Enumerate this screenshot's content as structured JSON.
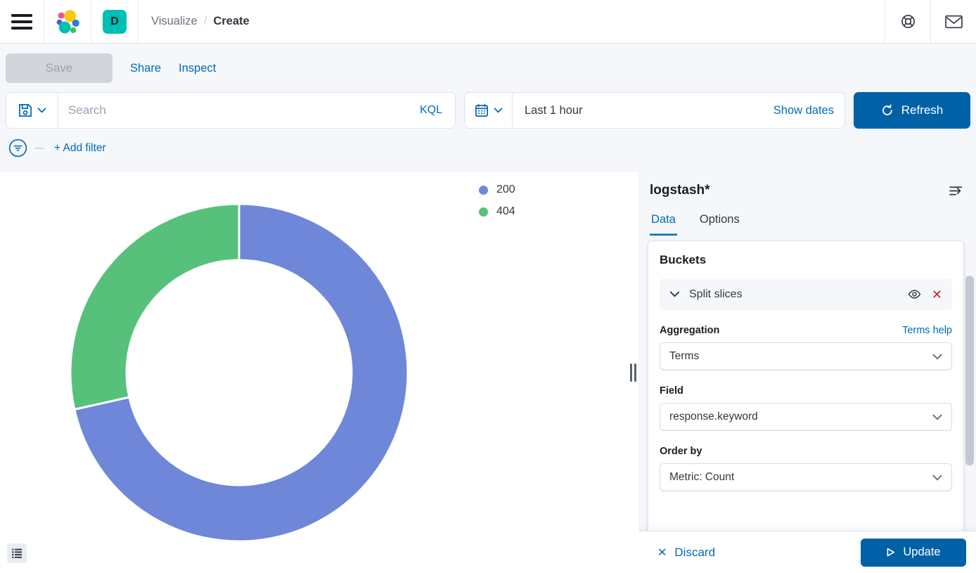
{
  "header": {
    "breadcrumb": {
      "section": "Visualize",
      "separator": "/",
      "current": "Create"
    },
    "space_badge": "D"
  },
  "toolbar": {
    "save_label": "Save",
    "share_label": "Share",
    "inspect_label": "Inspect"
  },
  "query_bar": {
    "search_placeholder": "Search",
    "language_label": "KQL",
    "time_range": "Last 1 hour",
    "show_dates_label": "Show dates",
    "refresh_label": "Refresh"
  },
  "filter_bar": {
    "add_filter_label": "+ Add filter"
  },
  "chart_data": {
    "type": "pie",
    "subtype": "donut",
    "title": "",
    "labels": [
      "200",
      "404"
    ],
    "values_percent": [
      71.5,
      28.5
    ],
    "colors": [
      "#6F87D8",
      "#57C17B"
    ],
    "legend_position": "right",
    "inner_radius_ratio": 0.665,
    "start_angle_deg": 0,
    "clockwise": true
  },
  "legend": {
    "items": [
      {
        "label": "200",
        "color": "#6F87D8"
      },
      {
        "label": "404",
        "color": "#57C17B"
      }
    ]
  },
  "panel": {
    "index_pattern": "logstash*",
    "tabs": [
      {
        "label": "Data",
        "active": true
      },
      {
        "label": "Options",
        "active": false
      }
    ],
    "buckets": {
      "heading": "Buckets",
      "accordion_label": "Split slices",
      "aggregation": {
        "label": "Aggregation",
        "help_link": "Terms help",
        "value": "Terms"
      },
      "field": {
        "label": "Field",
        "value": "response.keyword"
      },
      "order_by": {
        "label": "Order by",
        "value": "Metric: Count"
      }
    },
    "footer": {
      "discard_label": "Discard",
      "update_label": "Update"
    }
  },
  "icons": {
    "cross": "✕"
  },
  "colors": {
    "primary_link": "#006BB4",
    "primary_button_fill": "#0161A7",
    "danger": "#BD271E",
    "panel_background": "#F5F7FA",
    "badge_teal": "#00BFB3",
    "slice_200": "#6F87D8",
    "slice_404": "#57C17B"
  }
}
